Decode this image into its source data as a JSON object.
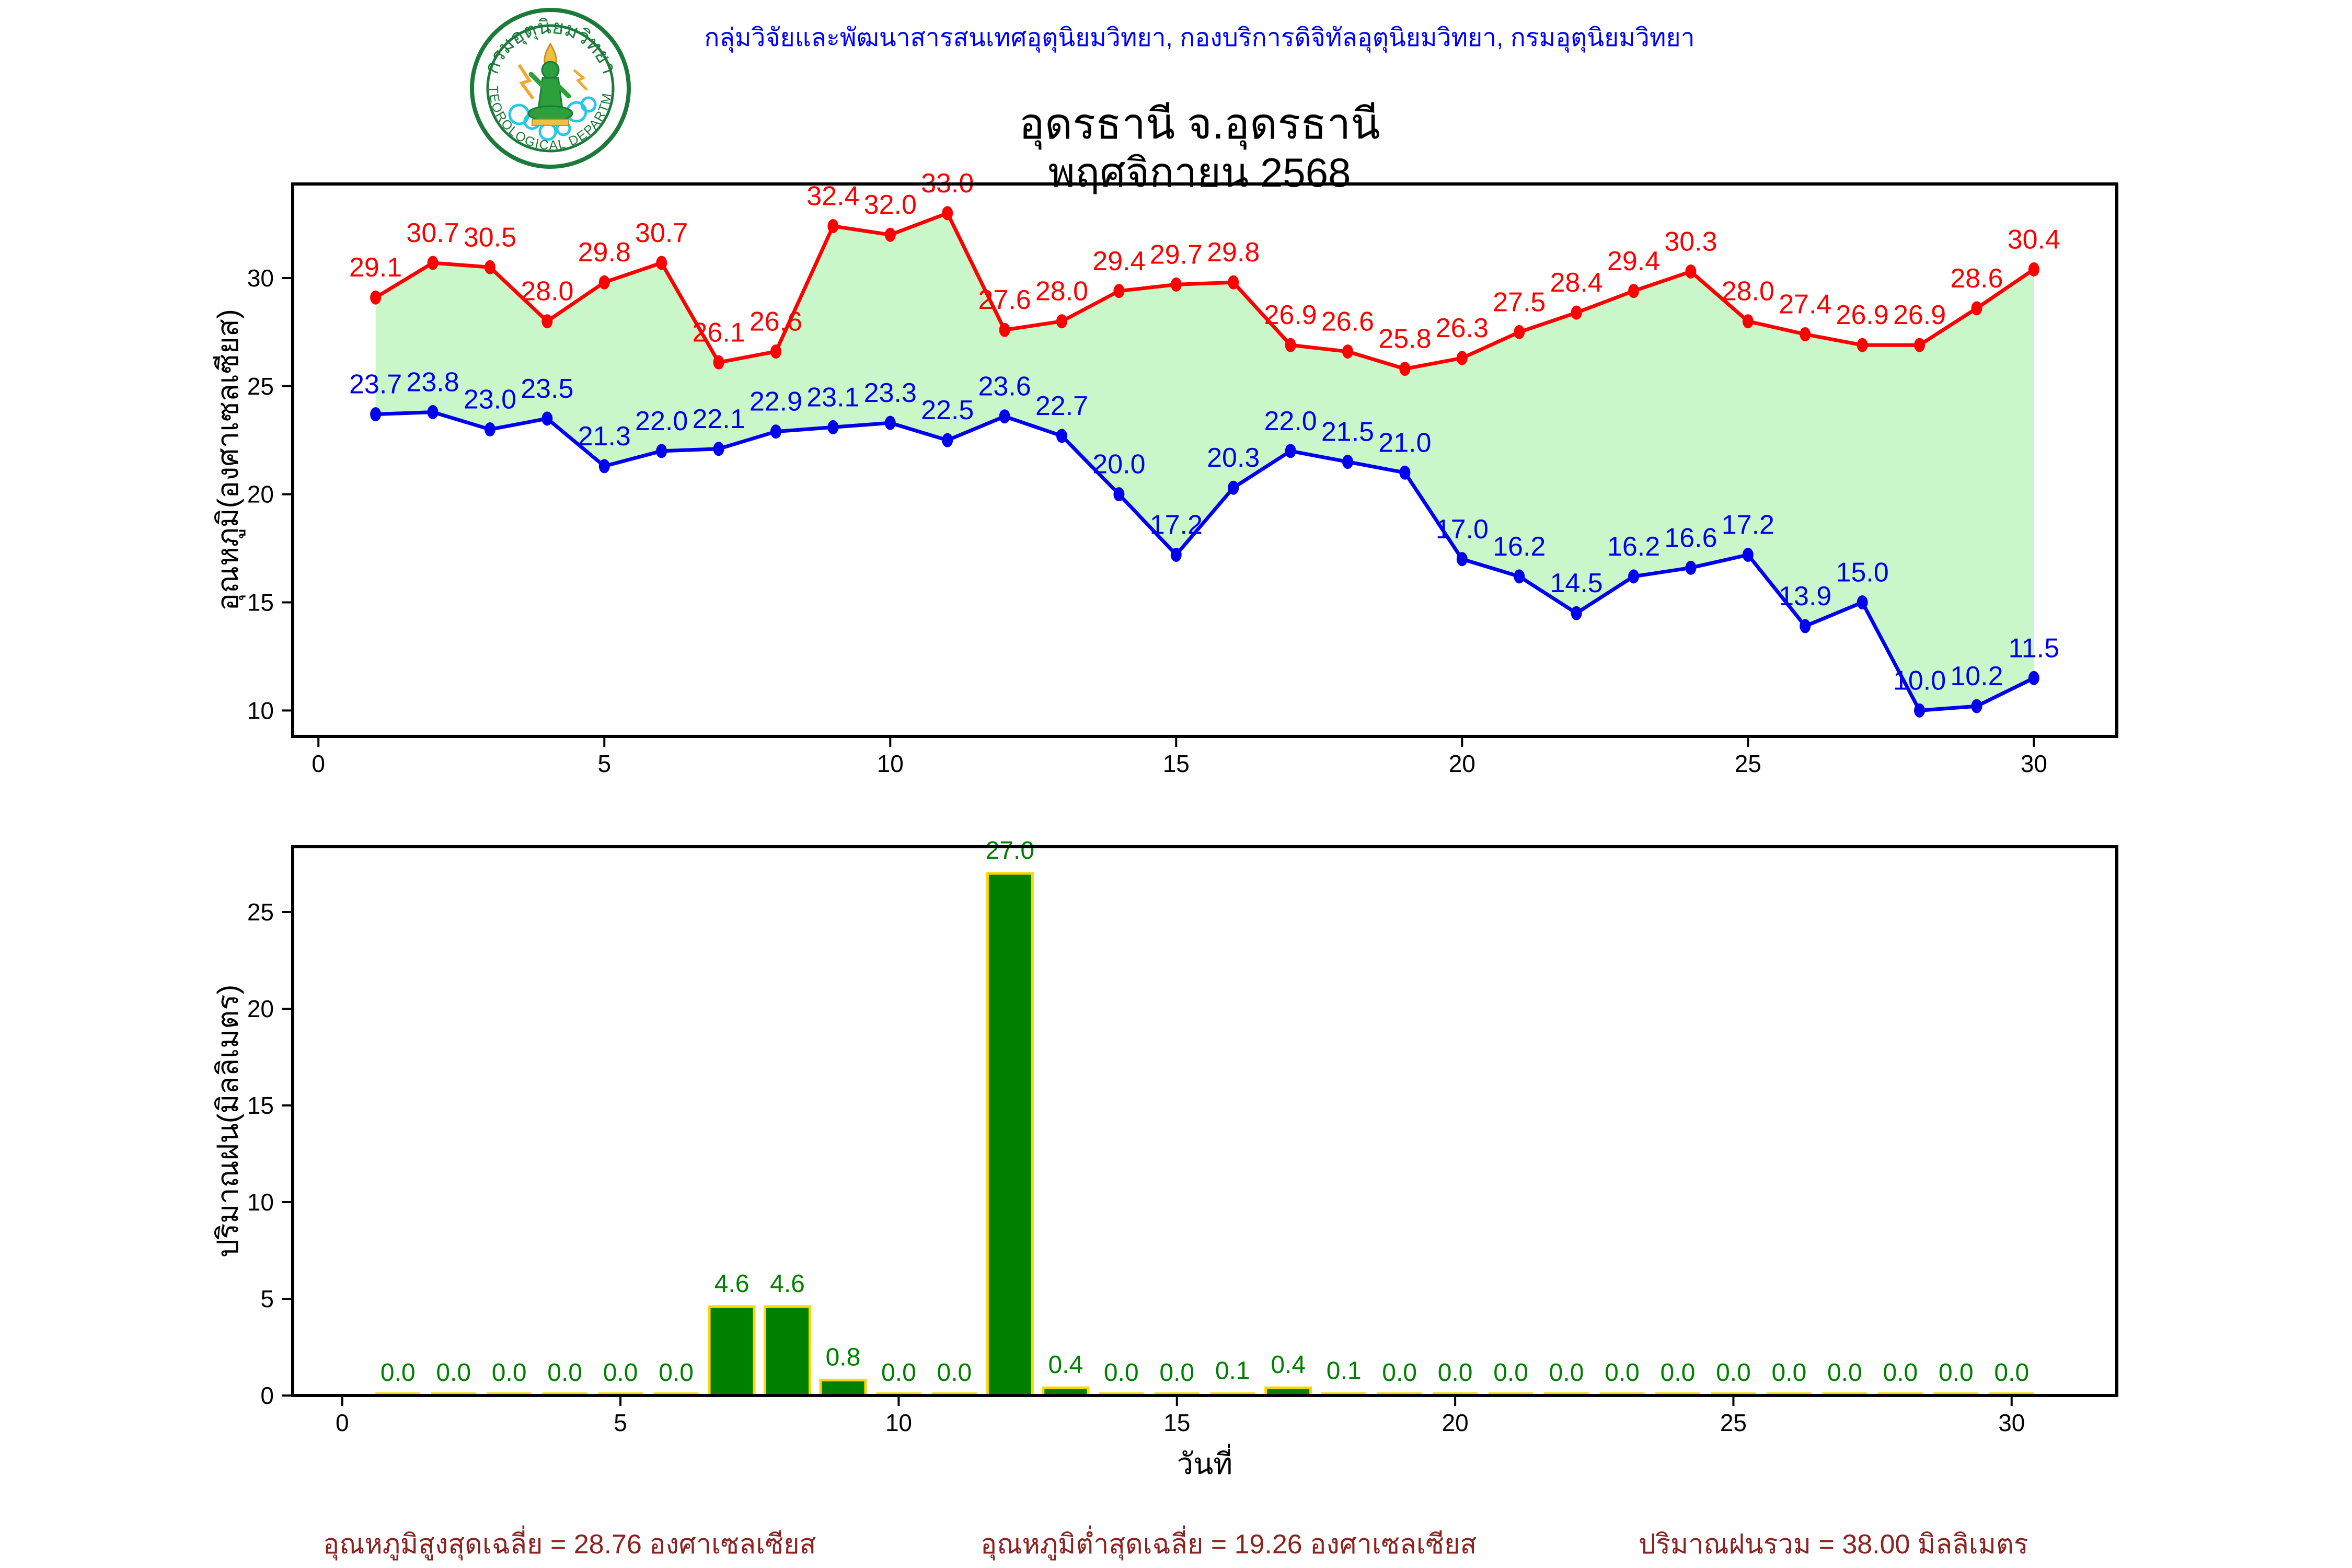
{
  "header": {
    "org_line": "กลุ่มวิจัยและพัฒนาสารสนเทศอุตุนิยมวิทยา, กองบริการดิจิทัลอุตุนิยมวิทยา, กรมอุตุนิยมวิทยา",
    "title": "อุดรธานี จ.อุดรธานี",
    "subtitle": "พฤศจิกายน 2568",
    "logo": {
      "top_text": "กรมอุตุนิยมวิทยา",
      "bottom_text": "METEOROLOGICAL DEPARTMENT"
    }
  },
  "chart_data": [
    {
      "type": "line",
      "ylabel": "อุณหภูมิ(องศาเซลเซียส)",
      "x": [
        1,
        2,
        3,
        4,
        5,
        6,
        7,
        8,
        9,
        10,
        11,
        12,
        13,
        14,
        15,
        16,
        17,
        18,
        19,
        20,
        21,
        22,
        23,
        24,
        25,
        26,
        27,
        28,
        29,
        30
      ],
      "series": [
        {
          "name": "max-temperature",
          "color": "#ff0000",
          "values": [
            29.1,
            30.7,
            30.5,
            28.0,
            29.8,
            30.7,
            26.1,
            26.6,
            32.4,
            32.0,
            33.0,
            27.6,
            28.0,
            29.4,
            29.7,
            29.8,
            26.9,
            26.6,
            25.8,
            26.3,
            27.5,
            28.4,
            29.4,
            30.3,
            28.0,
            27.4,
            26.9,
            26.9,
            28.6,
            30.4
          ]
        },
        {
          "name": "min-temperature",
          "color": "#0000ee",
          "values": [
            23.7,
            23.8,
            23.0,
            23.5,
            21.3,
            22.0,
            22.1,
            22.9,
            23.1,
            23.3,
            22.5,
            23.6,
            22.7,
            20.0,
            17.2,
            20.3,
            22.0,
            21.5,
            21.0,
            17.0,
            16.2,
            14.5,
            16.2,
            16.6,
            17.2,
            13.9,
            15.0,
            10.0,
            10.2,
            11.5
          ]
        }
      ],
      "fill_between_color": "#c9f7c9",
      "xlim": [
        -0.45,
        31.45
      ],
      "ylim": [
        8.8,
        34.35
      ],
      "x_ticks": [
        0,
        5,
        10,
        15,
        20,
        25,
        30
      ],
      "y_ticks": [
        10,
        15,
        20,
        25,
        30
      ],
      "grid": false,
      "legend": false
    },
    {
      "type": "bar",
      "ylabel": "ปริมาณฝน(มิลลิเมตร)",
      "xlabel": "วันที่",
      "x": [
        1,
        2,
        3,
        4,
        5,
        6,
        7,
        8,
        9,
        10,
        11,
        12,
        13,
        14,
        15,
        16,
        17,
        18,
        19,
        20,
        21,
        22,
        23,
        24,
        25,
        26,
        27,
        28,
        29,
        30
      ],
      "values": [
        0.0,
        0.0,
        0.0,
        0.0,
        0.0,
        0.0,
        4.6,
        4.6,
        0.8,
        0.0,
        0.0,
        27.0,
        0.4,
        0.0,
        0.0,
        0.1,
        0.4,
        0.1,
        0.0,
        0.0,
        0.0,
        0.0,
        0.0,
        0.0,
        0.0,
        0.0,
        0.0,
        0.0,
        0.0,
        0.0
      ],
      "bar_color": "#008000",
      "bar_edge_color": "#ffd700",
      "label_color": "#008000",
      "xlim": [
        -0.89,
        31.89
      ],
      "ylim": [
        0,
        28.38
      ],
      "x_ticks": [
        0,
        5,
        10,
        15,
        20,
        25,
        30
      ],
      "y_ticks": [
        0,
        5,
        10,
        15,
        20,
        25
      ],
      "grid": false,
      "legend": false
    }
  ],
  "summary": {
    "max_avg": "อุณหภูมิสูงสุดเฉลี่ย = 28.76 องศาเซลเซียส",
    "min_avg": "อุณหภูมิต่ำสุดเฉลี่ย = 19.26 องศาเซลเซียส",
    "rain_total": "ปริมาณฝนรวม = 38.00 มิลลิเมตร"
  },
  "colors": {
    "header_text": "#0000ff",
    "max_line": "#ff0000",
    "min_line": "#0000ee",
    "fill_between": "#c9f7c9",
    "bar_fill": "#008000",
    "bar_edge": "#ffd700",
    "summary_text": "#8b2321",
    "axis": "#000000",
    "logo_green": "#1b7a3a"
  }
}
